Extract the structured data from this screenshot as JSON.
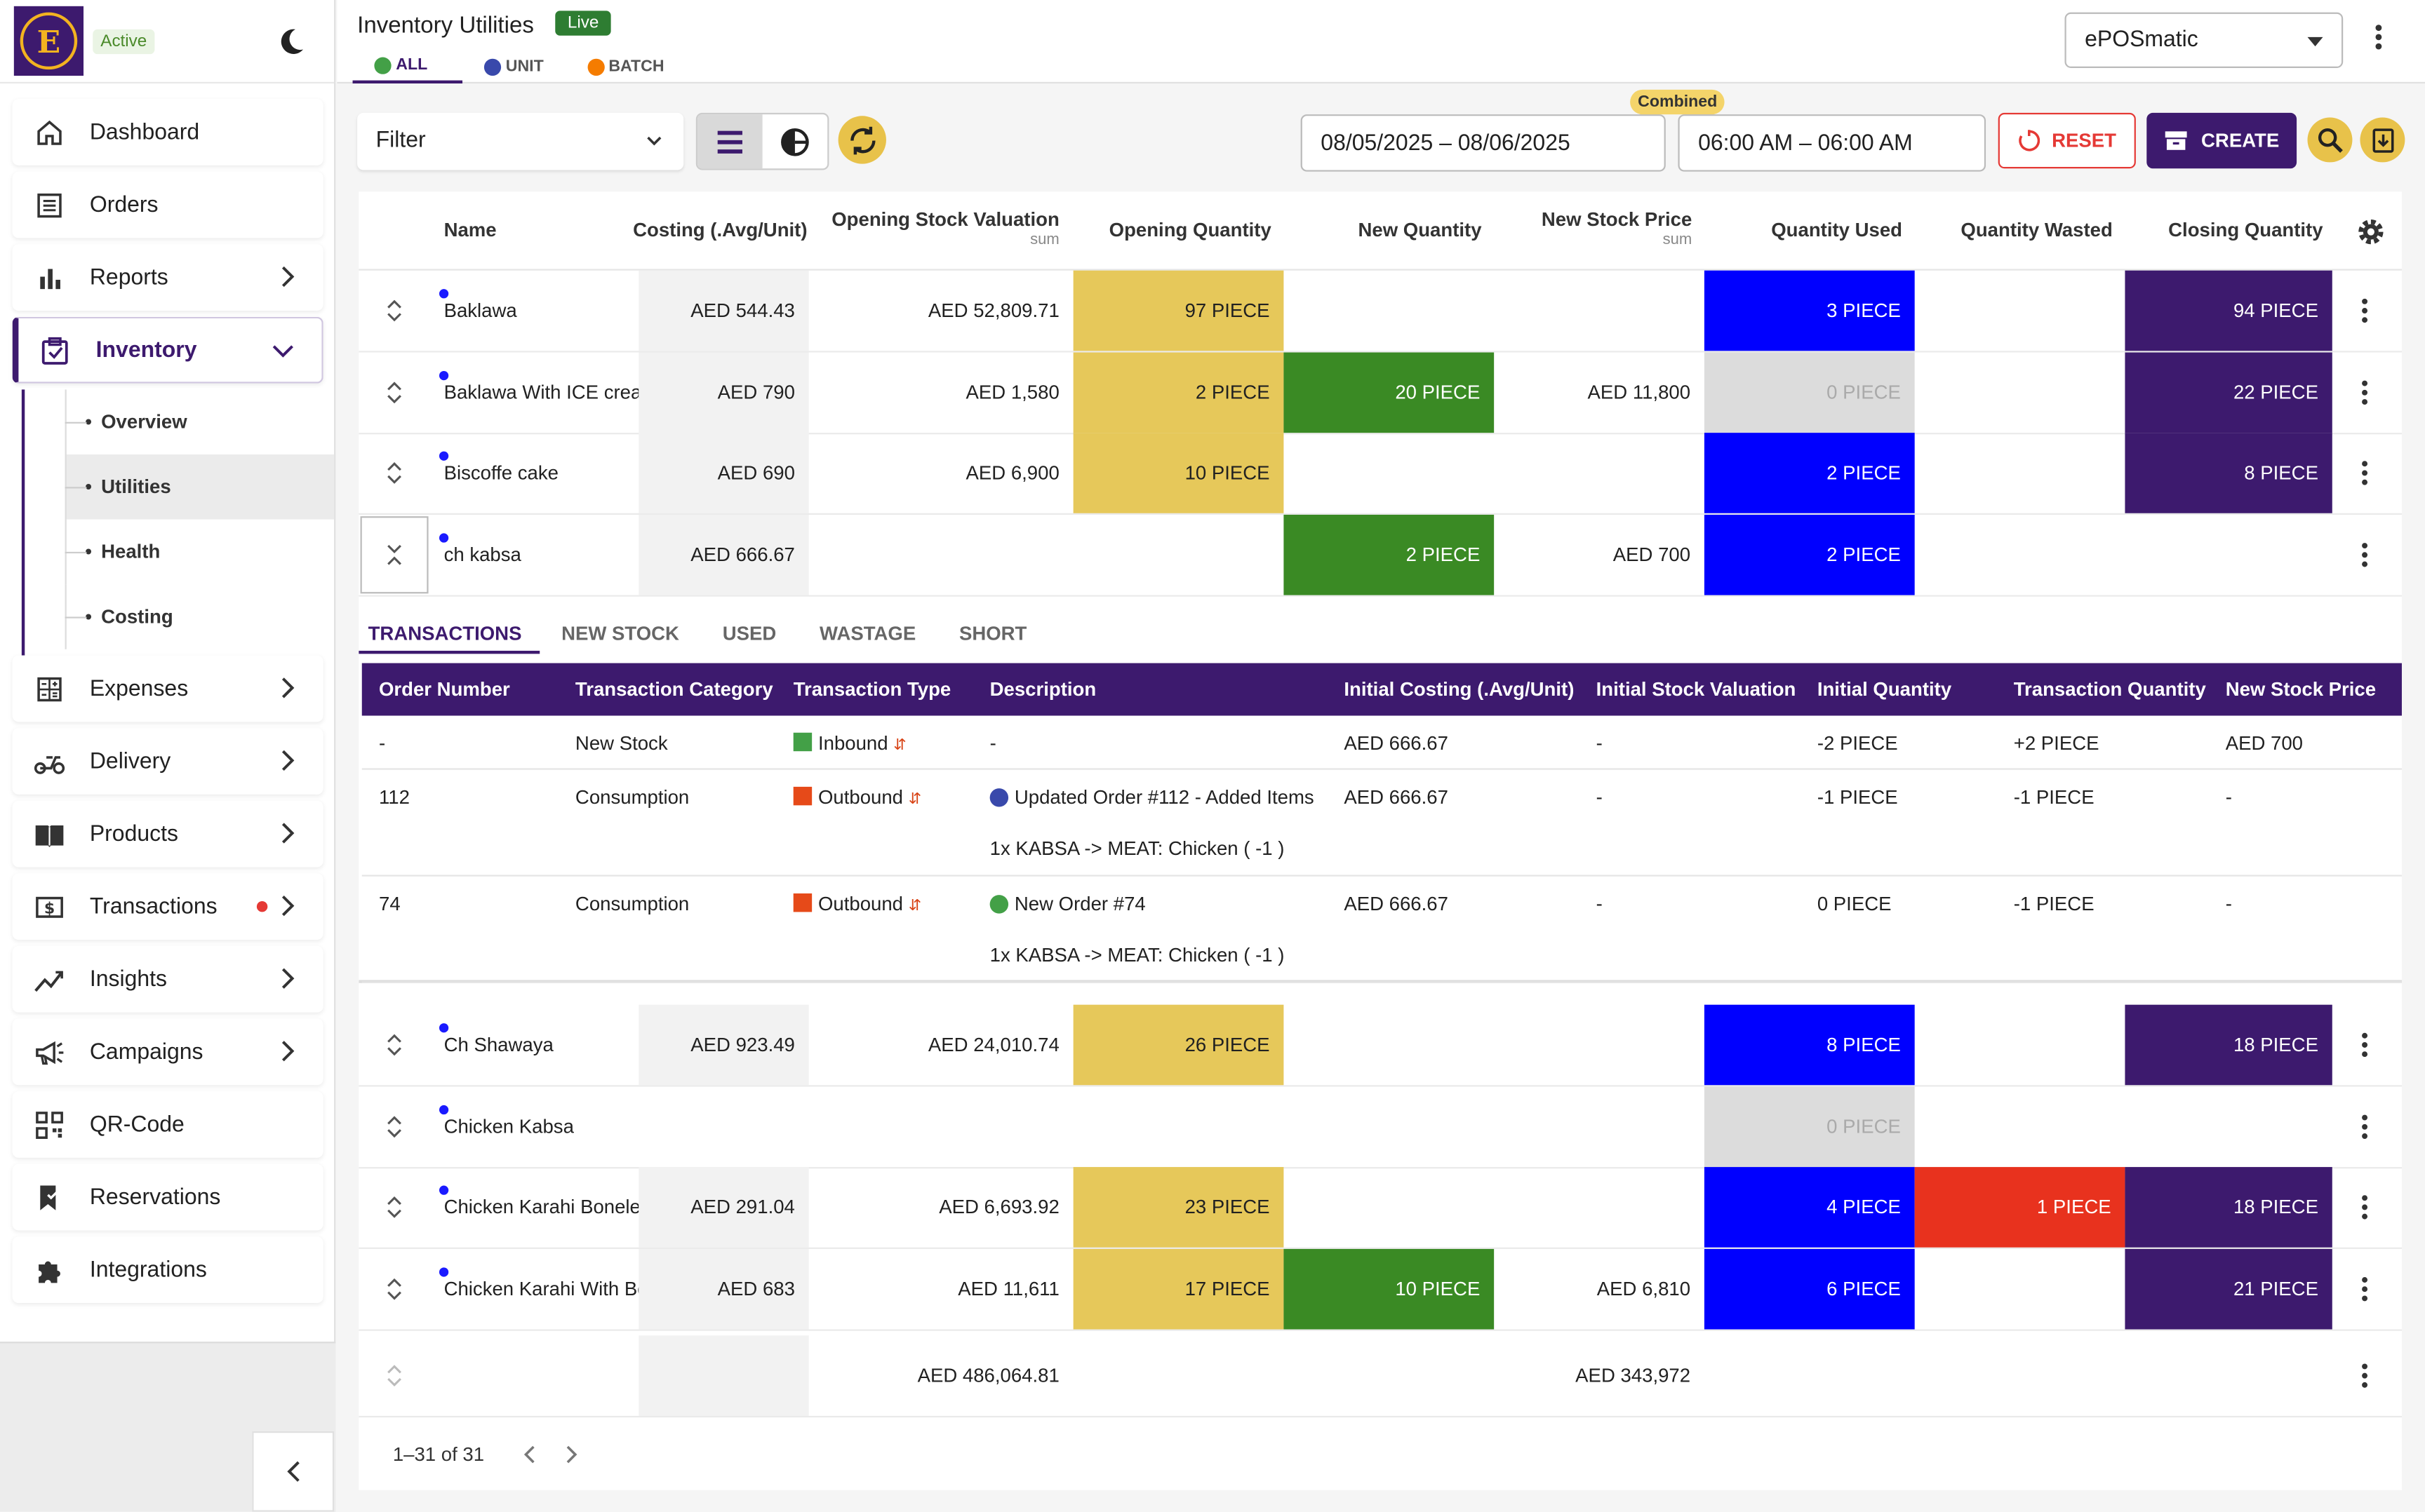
{
  "sidebar": {
    "logo_letter": "E",
    "status": "Active",
    "items": [
      {
        "label": "Dashboard",
        "icon": "home-icon"
      },
      {
        "label": "Orders",
        "icon": "orders-icon"
      },
      {
        "label": "Reports",
        "icon": "bar-chart-icon"
      },
      {
        "label": "Inventory",
        "icon": "inventory-icon"
      },
      {
        "label": "Expenses",
        "icon": "calculator-icon"
      },
      {
        "label": "Delivery",
        "icon": "scooter-icon"
      },
      {
        "label": "Products",
        "icon": "book-icon"
      },
      {
        "label": "Transactions",
        "icon": "dollar-icon"
      },
      {
        "label": "Insights",
        "icon": "trend-icon"
      },
      {
        "label": "Campaigns",
        "icon": "megaphone-icon"
      },
      {
        "label": "QR-Code",
        "icon": "qr-icon"
      },
      {
        "label": "Reservations",
        "icon": "bookmark-icon"
      },
      {
        "label": "Integrations",
        "icon": "puzzle-icon"
      }
    ],
    "inventory_sub": [
      "Overview",
      "Utilities",
      "Health",
      "Costing"
    ]
  },
  "header": {
    "title": "Inventory Utilities",
    "live": "Live",
    "tabs": [
      {
        "label": "ALL",
        "color": "#43a047"
      },
      {
        "label": "UNIT",
        "color": "#3949ab"
      },
      {
        "label": "BATCH",
        "color": "#f57c00"
      }
    ],
    "store": "ePOSmatic"
  },
  "toolbar": {
    "filter": "Filter",
    "combined": "Combined",
    "date_range": "08/05/2025 – 08/06/2025",
    "time_range": "06:00 AM – 06:00 AM",
    "reset": "RESET",
    "create": "CREATE"
  },
  "table": {
    "columns": {
      "name": "Name",
      "costing": "Costing (.Avg/Unit)",
      "opening_val": "Opening Stock Valuation",
      "opening_val_sub": "sum",
      "opening_qty": "Opening Quantity",
      "new_qty": "New Quantity",
      "new_price": "New Stock Price",
      "new_price_sub": "sum",
      "used": "Quantity Used",
      "wasted": "Quantity Wasted",
      "closing": "Closing Quantity"
    },
    "rows_top": [
      {
        "name": "Baklawa",
        "costing": "AED 544.43",
        "opening_val": "AED 52,809.71",
        "opening_qty": "97 PIECE",
        "new_qty": "",
        "new_price": "",
        "used": "3 PIECE",
        "wasted": "",
        "closing": "94 PIECE"
      },
      {
        "name": "Baklawa With ICE cream",
        "costing": "AED 790",
        "opening_val": "AED 1,580",
        "opening_qty": "2 PIECE",
        "new_qty": "20 PIECE",
        "new_price": "AED 11,800",
        "used": "0 PIECE",
        "wasted": "",
        "closing": "22 PIECE"
      },
      {
        "name": "Biscoffe cake",
        "costing": "AED 690",
        "opening_val": "AED 6,900",
        "opening_qty": "10 PIECE",
        "new_qty": "",
        "new_price": "",
        "used": "2 PIECE",
        "wasted": "",
        "closing": "8 PIECE"
      },
      {
        "name": "ch kabsa",
        "costing": "AED 666.67",
        "opening_val": "",
        "opening_qty": "",
        "new_qty": "2 PIECE",
        "new_price": "AED 700",
        "used": "2 PIECE",
        "wasted": "",
        "closing": ""
      }
    ],
    "rows_bottom": [
      {
        "name": "Ch Shawaya",
        "costing": "AED 923.49",
        "opening_val": "AED 24,010.74",
        "opening_qty": "26 PIECE",
        "new_qty": "",
        "new_price": "",
        "used": "8 PIECE",
        "wasted": "",
        "closing": "18 PIECE"
      },
      {
        "name": "Chicken Kabsa",
        "costing": "",
        "opening_val": "",
        "opening_qty": "",
        "new_qty": "",
        "new_price": "",
        "used": "0 PIECE",
        "wasted": "",
        "closing": ""
      },
      {
        "name": "Chicken Karahi Boneless",
        "costing": "AED 291.04",
        "opening_val": "AED 6,693.92",
        "opening_qty": "23 PIECE",
        "new_qty": "",
        "new_price": "",
        "used": "4 PIECE",
        "wasted": "1 PIECE",
        "closing": "18 PIECE"
      },
      {
        "name": "Chicken Karahi With Bone",
        "costing": "AED 683",
        "opening_val": "AED 11,611",
        "opening_qty": "17 PIECE",
        "new_qty": "10 PIECE",
        "new_price": "AED 6,810",
        "used": "6 PIECE",
        "wasted": "",
        "closing": "21 PIECE"
      }
    ],
    "totals": {
      "opening_val": "AED 486,064.81",
      "new_price": "AED 343,972"
    },
    "pagination": "1–31 of 31"
  },
  "subpanel": {
    "tabs": [
      "TRANSACTIONS",
      "NEW STOCK",
      "USED",
      "WASTAGE",
      "SHORT"
    ],
    "columns": [
      "Order Number",
      "Transaction Category",
      "Transaction Type",
      "Description",
      "Initial Costing (.Avg/Unit)",
      "Initial Stock Valuation",
      "Initial Quantity",
      "Transaction Quantity",
      "New Stock Price"
    ],
    "rows": [
      {
        "order": "-",
        "category": "New Stock",
        "type": "Inbound",
        "desc": "-",
        "desc2": "",
        "costing": "AED 666.67",
        "valuation": "-",
        "init_qty": "-2 PIECE",
        "tx_qty": "+2 PIECE",
        "price": "AED 700"
      },
      {
        "order": "112",
        "category": "Consumption",
        "type": "Outbound",
        "desc": "Updated Order #112 - Added Items",
        "desc2": "1x KABSA -> MEAT: Chicken ( -1 )",
        "costing": "AED 666.67",
        "valuation": "-",
        "init_qty": "-1 PIECE",
        "tx_qty": "-1 PIECE",
        "price": "-"
      },
      {
        "order": "74",
        "category": "Consumption",
        "type": "Outbound",
        "desc": "New Order #74",
        "desc2": "1x KABSA -> MEAT: Chicken ( -1 )",
        "costing": "AED 666.67",
        "valuation": "-",
        "init_qty": "0 PIECE",
        "tx_qty": "-1 PIECE",
        "price": "-"
      }
    ]
  },
  "colors": {
    "brand": "#3d1a6e",
    "opening": "#e6c85a",
    "new": "#3a8a24",
    "used": "#0000ff",
    "wasted": "#e8321e",
    "closing": "#3d1a6e",
    "zero": "#dcdcdc"
  }
}
